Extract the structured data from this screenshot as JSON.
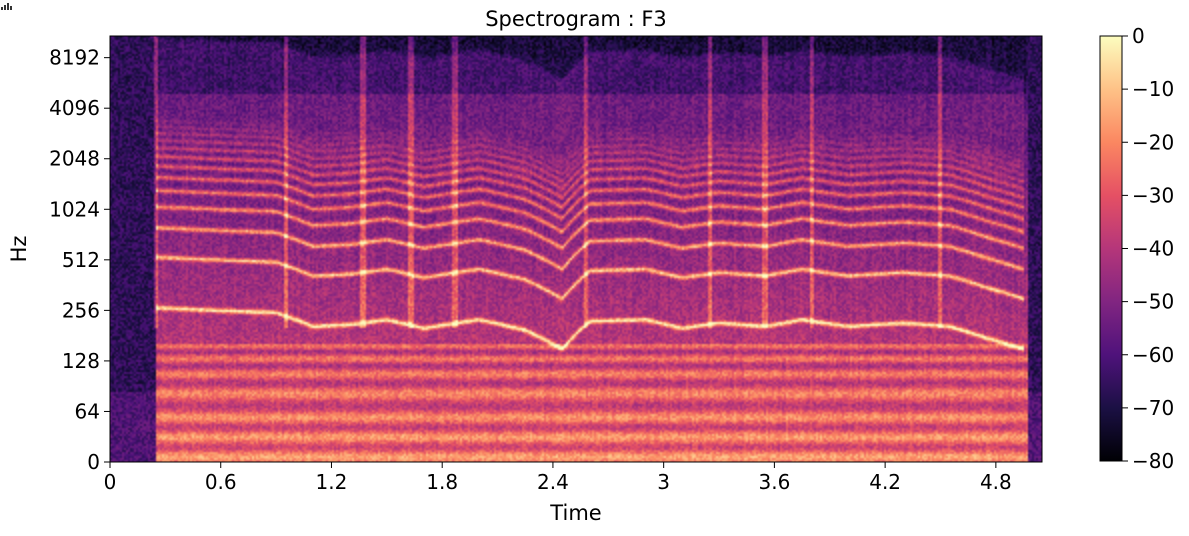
{
  "chart_data": {
    "type": "heatmap",
    "title": "Spectrogram : F3",
    "xlabel": "Time",
    "ylabel": "Hz",
    "x_ticks": [
      "0",
      "0.6",
      "1.2",
      "1.8",
      "2.4",
      "3",
      "3.6",
      "4.2",
      "4.8"
    ],
    "x_tick_values": [
      0,
      0.6,
      1.2,
      1.8,
      2.4,
      3.0,
      3.6,
      4.2,
      4.8
    ],
    "xlim": [
      0,
      5.05
    ],
    "y_scale": "symlog",
    "y_ticks": [
      "0",
      "64",
      "128",
      "256",
      "512",
      "1024",
      "2048",
      "4096",
      "8192"
    ],
    "y_tick_values": [
      0,
      64,
      128,
      256,
      512,
      1024,
      2048,
      4096,
      8192
    ],
    "ylim": [
      0,
      11025
    ],
    "colorbar": {
      "ticks": [
        "0",
        "−10",
        "−20",
        "−30",
        "−40",
        "−50",
        "−60",
        "−70",
        "−80"
      ],
      "tick_values": [
        0,
        -10,
        -20,
        -30,
        -40,
        -50,
        -60,
        -70,
        -80
      ],
      "range": [
        -80,
        0
      ],
      "colormap": "magma"
    },
    "onsets": [
      0.25,
      0.95,
      1.37,
      1.63,
      1.87,
      2.58,
      3.25,
      3.55,
      3.8,
      4.5
    ],
    "f0_track": [
      {
        "t": 0.25,
        "hz": 265
      },
      {
        "t": 0.6,
        "hz": 255
      },
      {
        "t": 0.9,
        "hz": 248
      },
      {
        "t": 1.1,
        "hz": 205
      },
      {
        "t": 1.3,
        "hz": 210
      },
      {
        "t": 1.5,
        "hz": 225
      },
      {
        "t": 1.7,
        "hz": 200
      },
      {
        "t": 2.0,
        "hz": 225
      },
      {
        "t": 2.25,
        "hz": 195
      },
      {
        "t": 2.45,
        "hz": 150
      },
      {
        "t": 2.6,
        "hz": 220
      },
      {
        "t": 2.9,
        "hz": 225
      },
      {
        "t": 3.1,
        "hz": 200
      },
      {
        "t": 3.3,
        "hz": 215
      },
      {
        "t": 3.55,
        "hz": 205
      },
      {
        "t": 3.75,
        "hz": 225
      },
      {
        "t": 4.0,
        "hz": 205
      },
      {
        "t": 4.3,
        "hz": 215
      },
      {
        "t": 4.55,
        "hz": 205
      },
      {
        "t": 4.75,
        "hz": 175
      },
      {
        "t": 4.95,
        "hz": 150
      }
    ],
    "silent_gaps": [
      [
        0,
        0.25
      ],
      [
        4.97,
        5.05
      ]
    ]
  },
  "colors": {
    "colormap_stops": [
      "#000004",
      "#1b1044",
      "#4f127b",
      "#812581",
      "#b5367a",
      "#e55064",
      "#fb8761",
      "#fec287",
      "#fcfdbf"
    ]
  }
}
